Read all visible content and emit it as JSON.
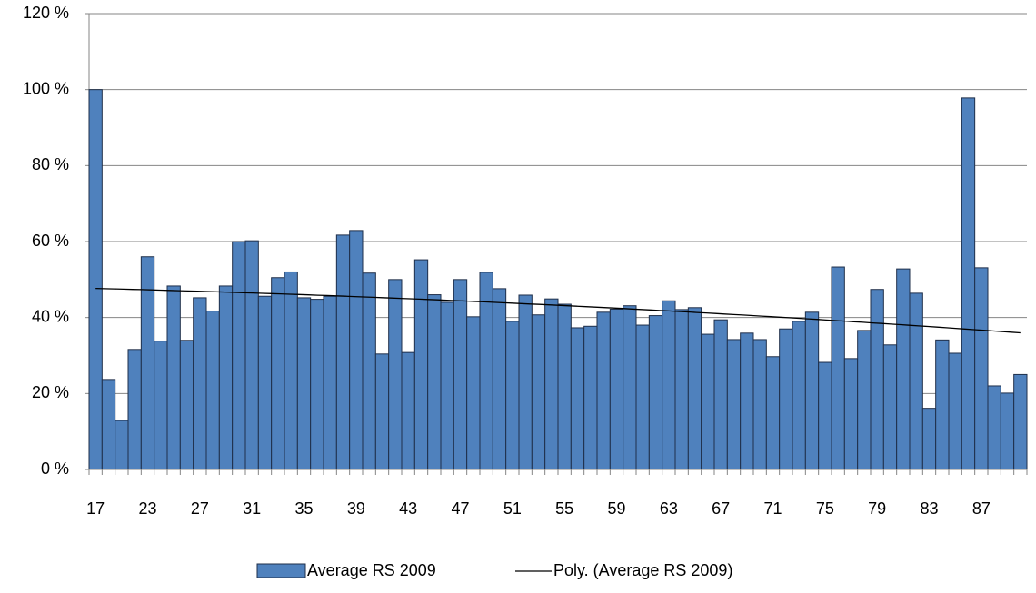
{
  "chart_data": {
    "type": "bar",
    "categories": [
      "17",
      null,
      null,
      null,
      "23",
      null,
      null,
      null,
      "27",
      null,
      null,
      null,
      "31",
      null,
      null,
      null,
      "35",
      null,
      null,
      null,
      "39",
      null,
      null,
      null,
      "43",
      null,
      null,
      null,
      "47",
      null,
      null,
      null,
      "51",
      null,
      null,
      null,
      "55",
      null,
      null,
      null,
      "59",
      null,
      null,
      null,
      "63",
      null,
      null,
      null,
      "67",
      null,
      null,
      null,
      "71",
      null,
      null,
      null,
      "75",
      null,
      null,
      null,
      "79",
      null,
      null,
      null,
      "83",
      null,
      null,
      null,
      "87",
      null,
      null,
      null
    ],
    "series": [
      {
        "name": "Average RS 2009",
        "color": "#4f81bd",
        "values": [
          100,
          23.7,
          12.9,
          31.6,
          56,
          33.8,
          48.3,
          34,
          45.2,
          41.7,
          48.3,
          60,
          60.2,
          45.6,
          50.5,
          52,
          45.2,
          44.8,
          45.6,
          61.7,
          62.9,
          51.7,
          30.4,
          50,
          30.8,
          55.2,
          46,
          44,
          50,
          40.2,
          51.9,
          47.6,
          39,
          45.9,
          40.7,
          44.9,
          43.5,
          37.3,
          37.7,
          41.4,
          42.2,
          43.1,
          38,
          40.5,
          44.4,
          42.1,
          42.6,
          35.6,
          39.4,
          34.2,
          35.9,
          34.2,
          29.7,
          37,
          39,
          41.4,
          28.2,
          53.3,
          29.2,
          36.6,
          47.4,
          32.8,
          52.8,
          46.4,
          16.1,
          34.1,
          30.6,
          97.8,
          53.1,
          22,
          20.1,
          25
        ]
      }
    ],
    "trendline": {
      "name": "Poly. (Average RS 2009)",
      "kind": "polynomial",
      "order": 2,
      "color": "#000000"
    },
    "ylim": [
      0,
      120
    ],
    "yticks": [
      {
        "value": 0,
        "label": "0 %"
      },
      {
        "value": 20,
        "label": "20 %"
      },
      {
        "value": 40,
        "label": "40 %"
      },
      {
        "value": 60,
        "label": "60 %"
      },
      {
        "value": 80,
        "label": "80 %"
      },
      {
        "value": 100,
        "label": "100 %"
      },
      {
        "value": 120,
        "label": "120 %"
      }
    ],
    "grid": true,
    "legend": "bottom"
  }
}
